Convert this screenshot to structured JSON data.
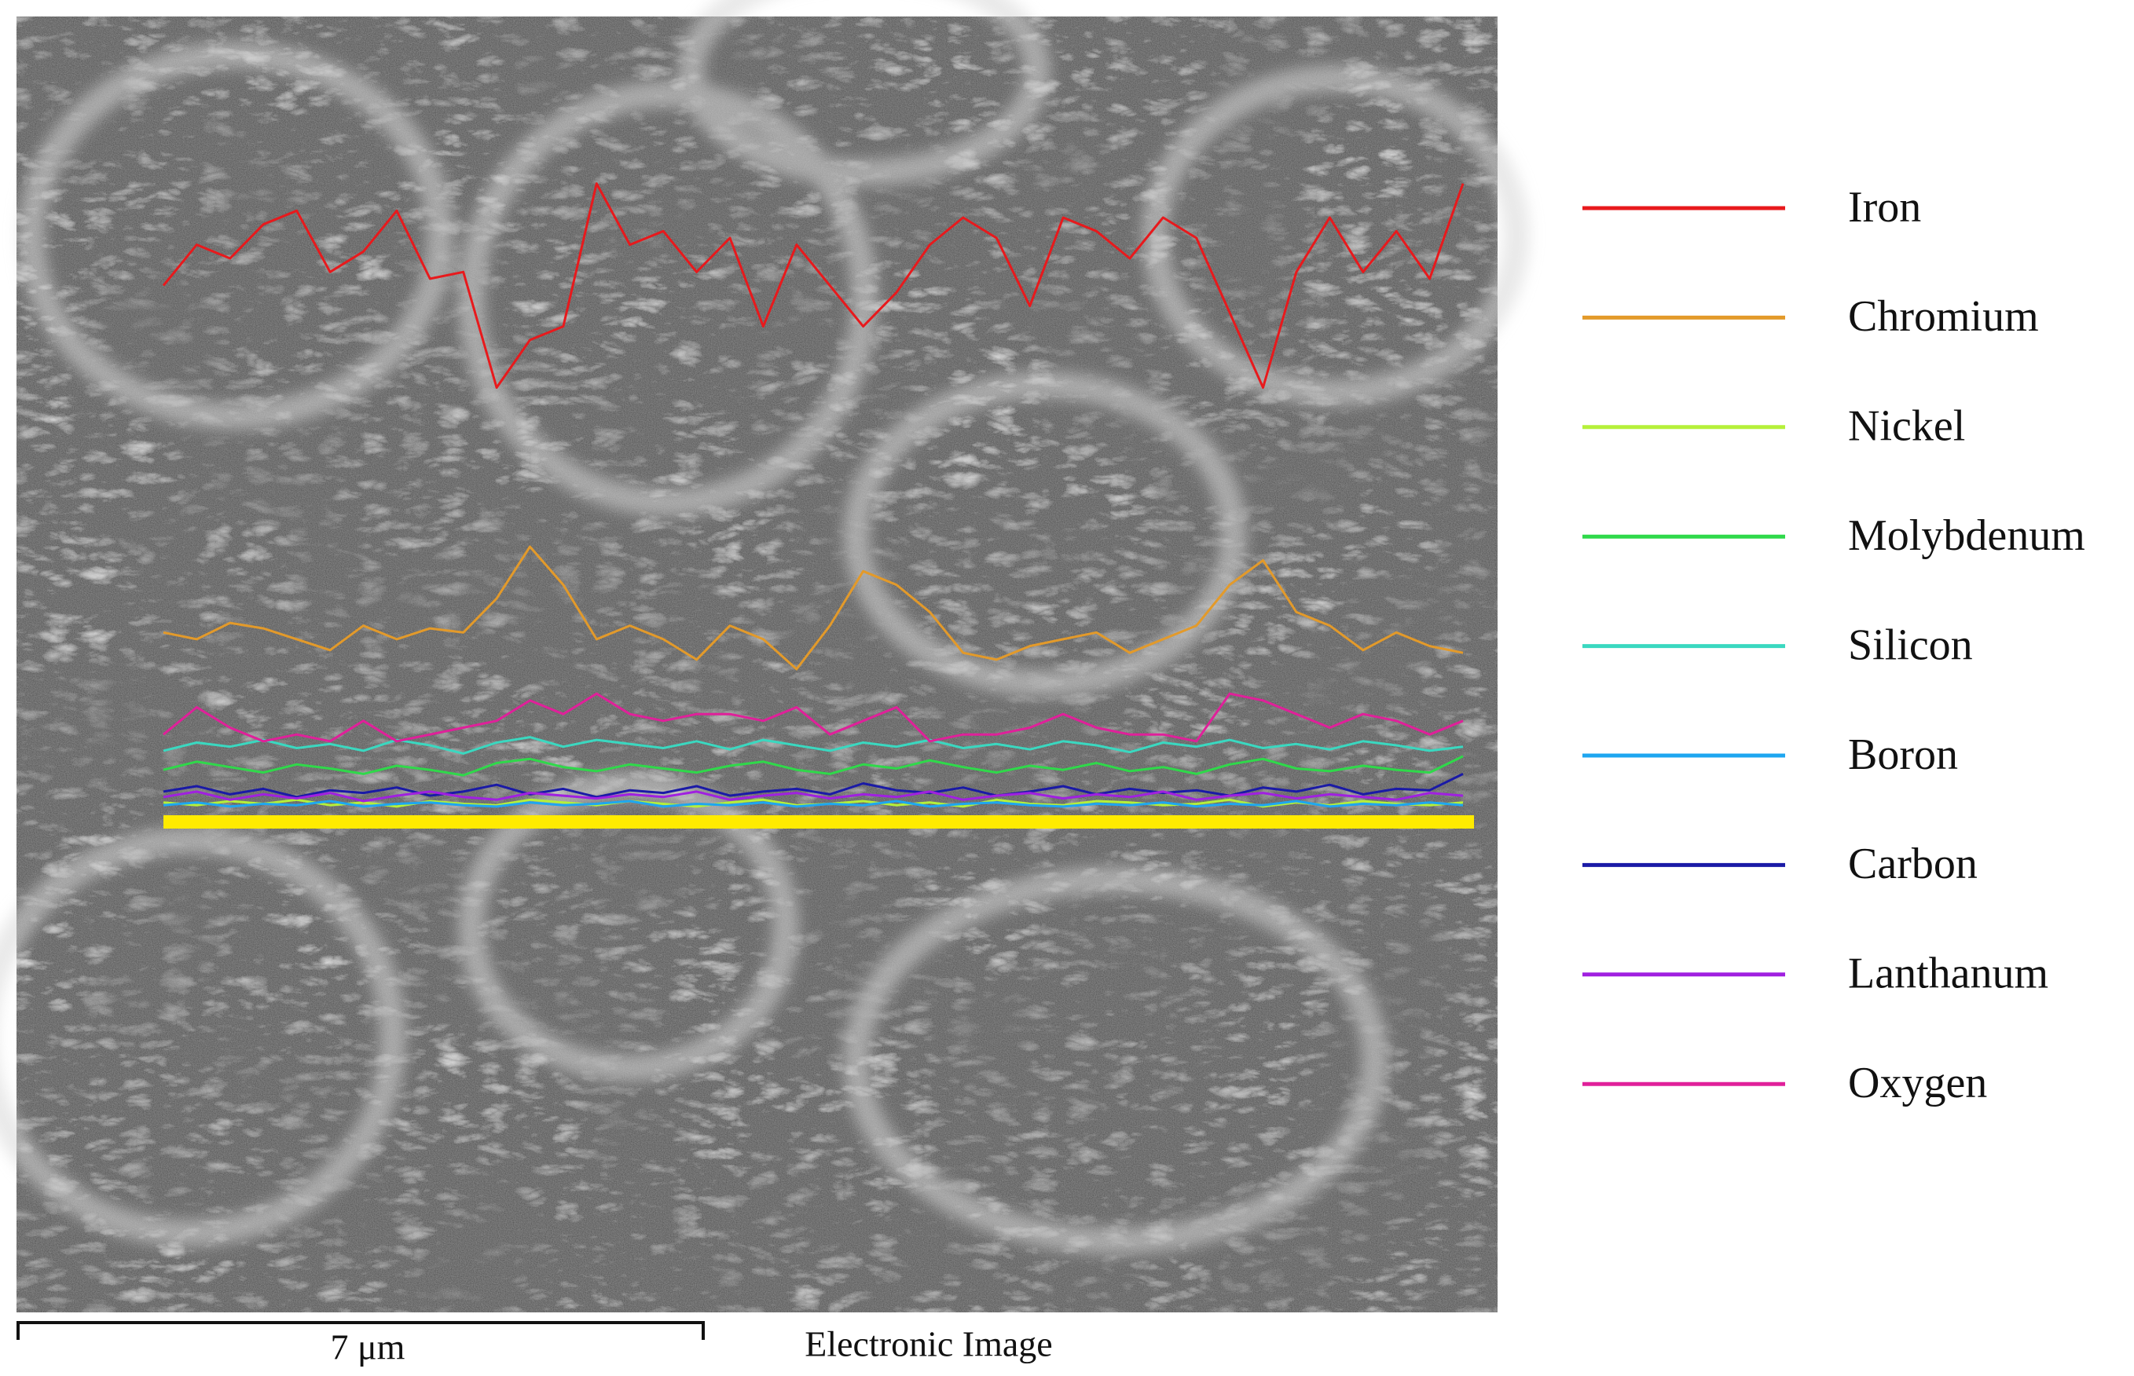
{
  "chart_data": {
    "type": "line",
    "annotations": {
      "scale_bar": "7 μm",
      "caption": "Electronic Image"
    },
    "legend": "right",
    "series": [
      {
        "name": "Iron",
        "color": "#e8191c",
        "values": [
          394,
          424,
          414,
          439,
          449,
          404,
          419,
          449,
          399,
          404,
          319,
          354,
          364,
          469,
          424,
          434,
          404,
          429,
          364,
          424,
          394,
          364,
          389,
          424,
          444,
          429,
          379,
          444,
          434,
          414,
          444,
          429,
          374,
          319,
          404,
          444,
          404,
          434,
          399,
          469
        ]
      },
      {
        "name": "Chromium",
        "color": "#e39a2a",
        "values": [
          139,
          134,
          146,
          142,
          134,
          126,
          144,
          134,
          142,
          139,
          164,
          202,
          174,
          134,
          144,
          134,
          119,
          144,
          134,
          112,
          144,
          184,
          174,
          154,
          124,
          119,
          129,
          134,
          139,
          124,
          134,
          144,
          174,
          192,
          154,
          144,
          126,
          139,
          129,
          124
        ]
      },
      {
        "name": "Nickel",
        "color": "#b5f03a",
        "values": [
          14,
          12,
          15,
          13,
          16,
          12,
          14,
          11,
          15,
          13,
          12,
          16,
          14,
          12,
          15,
          13,
          11,
          14,
          16,
          12,
          13,
          15,
          12,
          14,
          11,
          16,
          13,
          12,
          15,
          14,
          12,
          13,
          16,
          11,
          14,
          12,
          15,
          13,
          12,
          14
        ]
      },
      {
        "name": "Molybdenum",
        "color": "#2fd94a",
        "values": [
          38,
          44,
          40,
          36,
          42,
          39,
          35,
          41,
          38,
          34,
          43,
          46,
          40,
          37,
          42,
          39,
          36,
          41,
          44,
          38,
          35,
          42,
          39,
          45,
          40,
          36,
          41,
          38,
          43,
          37,
          40,
          35,
          42,
          46,
          39,
          37,
          41,
          38,
          36,
          48
        ]
      },
      {
        "name": "Silicon",
        "color": "#3ad8c0",
        "values": [
          52,
          58,
          55,
          60,
          54,
          57,
          52,
          60,
          56,
          50,
          58,
          62,
          55,
          60,
          57,
          54,
          59,
          53,
          60,
          56,
          52,
          58,
          55,
          60,
          54,
          57,
          53,
          59,
          56,
          51,
          58,
          55,
          60,
          54,
          57,
          53,
          59,
          56,
          52,
          55
        ]
      },
      {
        "name": "Boron",
        "color": "#1ea6f0",
        "values": [
          12,
          14,
          11,
          13,
          12,
          15,
          11,
          13,
          14,
          12,
          11,
          14,
          12,
          13,
          15,
          11,
          13,
          12,
          14,
          11,
          13,
          12,
          15,
          11,
          13,
          14,
          12,
          11,
          13,
          12,
          14,
          11,
          13,
          12,
          15,
          11,
          13,
          12,
          14,
          12
        ]
      },
      {
        "name": "Carbon",
        "color": "#1a1aa6",
        "values": [
          22,
          26,
          20,
          24,
          18,
          23,
          21,
          25,
          19,
          22,
          27,
          20,
          24,
          18,
          23,
          21,
          26,
          19,
          22,
          24,
          20,
          28,
          23,
          21,
          25,
          19,
          22,
          26,
          20,
          24,
          21,
          23,
          19,
          25,
          22,
          27,
          20,
          24,
          23,
          35
        ]
      },
      {
        "name": "Lanthanum",
        "color": "#a020e0",
        "values": [
          18,
          22,
          16,
          20,
          17,
          21,
          15,
          19,
          22,
          18,
          16,
          21,
          19,
          17,
          20,
          18,
          22,
          16,
          19,
          21,
          17,
          20,
          18,
          22,
          16,
          19,
          21,
          17,
          20,
          18,
          22,
          16,
          19,
          21,
          17,
          20,
          18,
          16,
          21,
          19
        ]
      },
      {
        "name": "Oxygen",
        "color": "#e0209a",
        "values": [
          64,
          84,
          69,
          59,
          64,
          59,
          74,
          59,
          64,
          69,
          74,
          89,
          79,
          94,
          79,
          74,
          79,
          79,
          74,
          84,
          64,
          74,
          84,
          59,
          64,
          64,
          69,
          79,
          69,
          64,
          64,
          59,
          94,
          89,
          79,
          69,
          79,
          74,
          64,
          74
        ]
      }
    ]
  }
}
